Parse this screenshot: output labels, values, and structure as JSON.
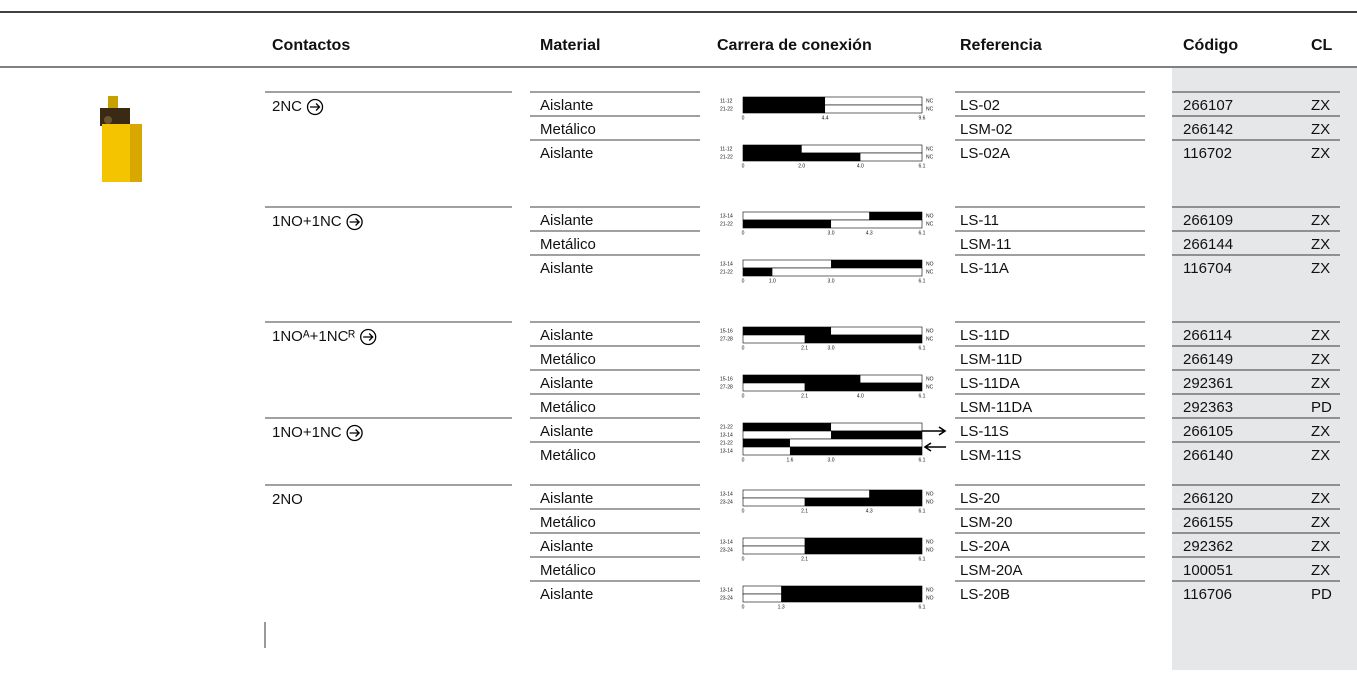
{
  "header": [
    "Contactos",
    "Material",
    "Carrera de conexión",
    "Referencia",
    "Código",
    "CL"
  ],
  "groups": [
    {
      "contactos": "2NC",
      "positive_opening": true,
      "variants": [
        {
          "diagram": {
            "ticks": [
              "0",
              "4.4",
              "9.6"
            ],
            "rows": [
              {
                "label": "11-12",
                "state": "NC",
                "black": [
                  0,
                  4.4
                ]
              },
              {
                "label": "21-22",
                "state": "NC",
                "black": [
                  0,
                  4.4
                ]
              }
            ]
          },
          "items": [
            {
              "material": "Aislante",
              "referencia": "LS-02",
              "codigo": "266107",
              "cl": "ZX"
            },
            {
              "material": "Metálico",
              "referencia": "LSM-02",
              "codigo": "266142",
              "cl": "ZX"
            }
          ]
        },
        {
          "diagram": {
            "ticks": [
              "0",
              "2.0",
              "4.0",
              "6.1"
            ],
            "rows": [
              {
                "label": "11-12",
                "state": "NC",
                "black": [
                  0,
                  2.0
                ]
              },
              {
                "label": "21-22",
                "state": "NC",
                "black": [
                  0,
                  4.0
                ]
              }
            ]
          },
          "items": [
            {
              "material": "Aislante",
              "referencia": "LS-02A",
              "codigo": "116702",
              "cl": "ZX"
            }
          ]
        }
      ]
    },
    {
      "contactos": "1NO+1NC",
      "positive_opening": true,
      "variants": [
        {
          "diagram": {
            "ticks": [
              "0",
              "3.0",
              "4.3",
              "6.1"
            ],
            "rows": [
              {
                "label": "13-14",
                "state": "NO",
                "black": [
                  4.3,
                  6.1
                ]
              },
              {
                "label": "21-22",
                "state": "NC",
                "black": [
                  0,
                  3.0
                ]
              }
            ]
          },
          "items": [
            {
              "material": "Aislante",
              "referencia": "LS-11",
              "codigo": "266109",
              "cl": "ZX"
            },
            {
              "material": "Metálico",
              "referencia": "LSM-11",
              "codigo": "266144",
              "cl": "ZX"
            }
          ]
        },
        {
          "diagram": {
            "ticks": [
              "0",
              "1.0",
              "3.0",
              "6.1"
            ],
            "rows": [
              {
                "label": "13-14",
                "state": "NO",
                "black": [
                  3.0,
                  6.1
                ]
              },
              {
                "label": "21-22",
                "state": "NC",
                "black": [
                  0,
                  1.0
                ]
              }
            ]
          },
          "items": [
            {
              "material": "Aislante",
              "referencia": "LS-11A",
              "codigo": "116704",
              "cl": "ZX"
            }
          ]
        }
      ]
    },
    {
      "contactos": "1NOᴬ+1NCᴿ",
      "positive_opening": true,
      "variants": [
        {
          "diagram": {
            "ticks": [
              "0",
              "2.1",
              "3.0",
              "6.1"
            ],
            "rows": [
              {
                "label": "15-16",
                "state": "NO",
                "black": [
                  0,
                  3.0
                ]
              },
              {
                "label": "27-28",
                "state": "NC",
                "black": [
                  2.1,
                  6.1
                ]
              }
            ]
          },
          "items": [
            {
              "material": "Aislante",
              "referencia": "LS-11D",
              "codigo": "266114",
              "cl": "ZX"
            },
            {
              "material": "Metálico",
              "referencia": "LSM-11D",
              "codigo": "266149",
              "cl": "ZX"
            }
          ]
        },
        {
          "diagram": {
            "ticks": [
              "0",
              "2.1",
              "4.0",
              "6.1"
            ],
            "rows": [
              {
                "label": "15-16",
                "state": "NO",
                "black": [
                  0,
                  4.0
                ]
              },
              {
                "label": "27-28",
                "state": "NC",
                "black": [
                  2.1,
                  6.1
                ]
              }
            ]
          },
          "items": [
            {
              "material": "Aislante",
              "referencia": "LS-11DA",
              "codigo": "292361",
              "cl": "ZX"
            },
            {
              "material": "Metálico",
              "referencia": "LSM-11DA",
              "codigo": "292363",
              "cl": "PD"
            }
          ]
        }
      ]
    },
    {
      "contactos": "1NO+1NC",
      "positive_opening": true,
      "variants": [
        {
          "diagram": {
            "ticks": [
              "0",
              "1.6",
              "3.0",
              "6.1"
            ],
            "arrows": true,
            "rows": [
              {
                "label": "21-22",
                "black": [
                  0,
                  3.0
                ]
              },
              {
                "label": "13-14",
                "black": [
                  3.0,
                  6.1
                ]
              },
              {
                "label": "21-22",
                "black": [
                  0,
                  1.6
                ]
              },
              {
                "label": "13-14",
                "black": [
                  1.6,
                  6.1
                ]
              }
            ]
          },
          "items": [
            {
              "material": "Aislante",
              "referencia": "LS-11S",
              "codigo": "266105",
              "cl": "ZX"
            },
            {
              "material": "Metálico",
              "referencia": "LSM-11S",
              "codigo": "266140",
              "cl": "ZX"
            }
          ]
        }
      ]
    },
    {
      "contactos": "2NO",
      "positive_opening": false,
      "variants": [
        {
          "diagram": {
            "ticks": [
              "0",
              "2.1",
              "4.3",
              "6.1"
            ],
            "rows": [
              {
                "label": "13-14",
                "state": "NO",
                "black": [
                  4.3,
                  6.1
                ]
              },
              {
                "label": "23-24",
                "state": "NO",
                "black": [
                  2.1,
                  6.1
                ]
              }
            ]
          },
          "items": [
            {
              "material": "Aislante",
              "referencia": "LS-20",
              "codigo": "266120",
              "cl": "ZX"
            },
            {
              "material": "Metálico",
              "referencia": "LSM-20",
              "codigo": "266155",
              "cl": "ZX"
            }
          ]
        },
        {
          "diagram": {
            "ticks": [
              "0",
              "2.1",
              "6.1"
            ],
            "rows": [
              {
                "label": "13-14",
                "state": "NO",
                "black": [
                  2.1,
                  6.1
                ]
              },
              {
                "label": "23-24",
                "state": "NO",
                "black": [
                  2.1,
                  6.1
                ]
              }
            ]
          },
          "items": [
            {
              "material": "Aislante",
              "referencia": "LS-20A",
              "codigo": "292362",
              "cl": "ZX"
            },
            {
              "material": "Metálico",
              "referencia": "LSM-20A",
              "codigo": "100051",
              "cl": "ZX"
            }
          ]
        },
        {
          "diagram": {
            "ticks": [
              "0",
              "1.3",
              "6.1"
            ],
            "rows": [
              {
                "label": "13-14",
                "state": "NO",
                "black": [
                  1.3,
                  6.1
                ]
              },
              {
                "label": "23-24",
                "state": "NO",
                "black": [
                  1.3,
                  6.1
                ]
              }
            ]
          },
          "items": [
            {
              "material": "Aislante",
              "referencia": "LS-20B",
              "codigo": "116706",
              "cl": "PD"
            }
          ]
        }
      ]
    }
  ]
}
